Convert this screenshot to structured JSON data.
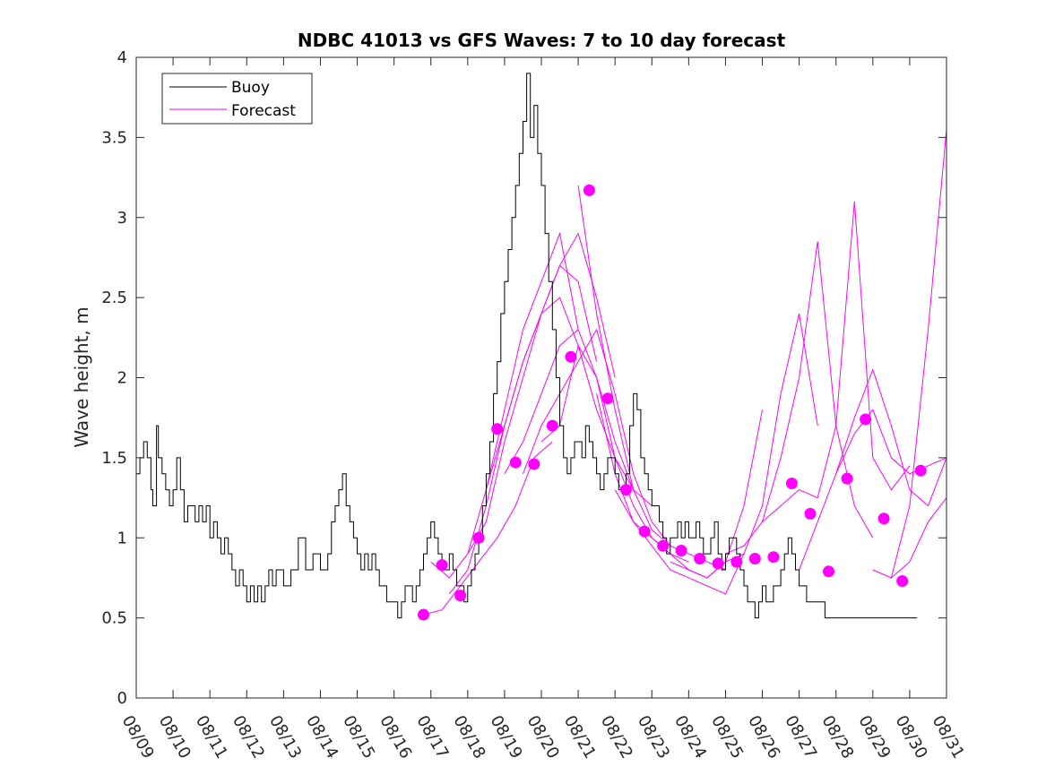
{
  "chart_data": {
    "type": "line",
    "title": "NDBC 41013 vs GFS Waves: 7 to 10 day forecast",
    "xlabel": "",
    "ylabel": "Wave height, m",
    "xlim": [
      0,
      22
    ],
    "ylim": [
      0,
      4
    ],
    "xtick_labels": [
      "08/09",
      "08/10",
      "08/11",
      "08/12",
      "08/13",
      "08/14",
      "08/15",
      "08/16",
      "08/17",
      "08/18",
      "08/19",
      "08/20",
      "08/21",
      "08/22",
      "08/23",
      "08/24",
      "08/25",
      "08/26",
      "08/27",
      "08/28",
      "08/29",
      "08/30",
      "08/31"
    ],
    "yticks": [
      0,
      0.5,
      1,
      1.5,
      2,
      2.5,
      3,
      3.5,
      4
    ],
    "ytick_labels": [
      "0",
      "0.5",
      "1",
      "1.5",
      "2",
      "2.5",
      "3",
      "3.5",
      "4"
    ],
    "legend": {
      "position": "top-left",
      "entries": [
        "Buoy",
        "Forecast"
      ]
    },
    "colors": {
      "buoy": "#000000",
      "forecast": "#ff00ff"
    },
    "series": [
      {
        "name": "Buoy",
        "x": [
          0,
          0.1,
          0.2,
          0.3,
          0.4,
          0.45,
          0.55,
          0.6,
          0.7,
          0.8,
          0.9,
          1.0,
          1.1,
          1.2,
          1.3,
          1.4,
          1.5,
          1.6,
          1.7,
          1.8,
          1.9,
          2.0,
          2.1,
          2.2,
          2.3,
          2.4,
          2.5,
          2.6,
          2.7,
          2.8,
          2.9,
          3.0,
          3.1,
          3.2,
          3.3,
          3.4,
          3.5,
          3.6,
          3.7,
          3.8,
          3.9,
          4.0,
          4.2,
          4.4,
          4.6,
          4.8,
          5.0,
          5.2,
          5.3,
          5.4,
          5.5,
          5.6,
          5.7,
          5.8,
          5.9,
          6.0,
          6.1,
          6.2,
          6.3,
          6.4,
          6.5,
          6.6,
          6.7,
          6.8,
          6.9,
          7.0,
          7.1,
          7.2,
          7.3,
          7.4,
          7.5,
          7.6,
          7.7,
          7.8,
          7.9,
          8.0,
          8.1,
          8.2,
          8.3,
          8.4,
          8.5,
          8.6,
          8.7,
          8.8,
          8.9,
          9.0,
          9.1,
          9.2,
          9.3,
          9.4,
          9.5,
          9.6,
          9.7,
          9.8,
          9.9,
          10.0,
          10.1,
          10.2,
          10.3,
          10.4,
          10.5,
          10.6,
          10.7,
          10.8,
          10.9,
          11.0,
          11.1,
          11.2,
          11.3,
          11.4,
          11.5,
          11.6,
          11.7,
          11.8,
          11.9,
          12.0,
          12.1,
          12.2,
          12.3,
          12.4,
          12.5,
          12.6,
          12.7,
          12.8,
          12.9,
          13.0,
          13.1,
          13.2,
          13.3,
          13.4,
          13.5,
          13.6,
          13.7,
          13.8,
          13.9,
          14.0,
          14.1,
          14.2,
          14.3,
          14.4,
          14.5,
          14.6,
          14.7,
          14.8,
          14.9,
          15.0,
          15.1,
          15.2,
          15.3,
          15.4,
          15.5,
          15.6,
          15.7,
          15.8,
          15.9,
          16.0,
          16.1,
          16.2,
          16.3,
          16.4,
          16.5,
          16.6,
          16.7,
          16.8,
          16.9,
          17.0,
          17.1,
          17.2,
          17.3,
          17.4,
          17.5,
          17.6,
          17.7,
          17.8,
          17.9,
          18.0,
          18.1,
          18.2,
          18.3,
          18.4,
          18.5,
          18.6,
          18.7,
          18.8,
          18.9,
          19.0,
          19.1,
          19.2,
          19.3,
          19.4,
          19.5,
          19.6,
          19.7,
          19.8,
          19.9,
          20.0,
          20.1,
          20.2,
          20.3,
          20.4,
          20.5,
          20.6,
          20.7,
          20.8,
          20.9,
          21.0,
          21.1,
          21.2
        ],
        "y": [
          1.4,
          1.5,
          1.6,
          1.5,
          1.3,
          1.2,
          1.7,
          1.5,
          1.4,
          1.3,
          1.2,
          1.3,
          1.5,
          1.3,
          1.1,
          1.2,
          1.2,
          1.1,
          1.2,
          1.1,
          1.2,
          1.0,
          1.1,
          1.0,
          0.9,
          1.0,
          0.9,
          0.8,
          0.7,
          0.8,
          0.7,
          0.6,
          0.7,
          0.6,
          0.7,
          0.6,
          0.7,
          0.8,
          0.7,
          0.8,
          0.8,
          0.7,
          0.8,
          1.0,
          0.8,
          0.9,
          0.8,
          0.9,
          1.1,
          1.2,
          1.3,
          1.4,
          1.2,
          1.1,
          1.0,
          0.9,
          0.8,
          0.9,
          0.8,
          0.9,
          0.8,
          0.7,
          0.7,
          0.6,
          0.6,
          0.6,
          0.5,
          0.6,
          0.7,
          0.7,
          0.6,
          0.7,
          0.8,
          0.9,
          1.0,
          1.1,
          1.0,
          0.9,
          0.8,
          0.8,
          0.9,
          0.8,
          0.7,
          0.7,
          0.6,
          0.7,
          0.8,
          0.9,
          1.0,
          1.2,
          1.4,
          1.6,
          1.9,
          2.1,
          2.4,
          2.6,
          2.8,
          3.0,
          3.2,
          3.4,
          3.6,
          3.9,
          3.5,
          3.7,
          3.4,
          3.2,
          2.9,
          2.6,
          2.3,
          2.0,
          1.7,
          1.5,
          1.4,
          1.5,
          1.6,
          1.6,
          1.5,
          1.7,
          1.6,
          1.5,
          1.4,
          1.3,
          1.4,
          1.5,
          1.5,
          1.4,
          1.3,
          1.3,
          1.4,
          1.7,
          1.9,
          1.8,
          1.5,
          1.4,
          1.3,
          1.2,
          1.2,
          1.1,
          1.0,
          0.9,
          1.0,
          1.0,
          1.1,
          1.0,
          1.1,
          1.0,
          1.0,
          1.1,
          1.0,
          0.9,
          0.9,
          1.0,
          1.1,
          0.9,
          0.8,
          0.9,
          1.0,
          1.0,
          0.9,
          0.8,
          0.7,
          0.6,
          0.6,
          0.5,
          0.6,
          0.7,
          0.6,
          0.6,
          0.7,
          0.7,
          0.8,
          0.9,
          1.0,
          0.9,
          0.8,
          0.7,
          0.7,
          0.6,
          0.6,
          0.6,
          0.6,
          0.6,
          0.5,
          0.5,
          0.5,
          0.5,
          0.5,
          0.5,
          0.5,
          0.5,
          0.5,
          0.5,
          0.5,
          0.5,
          0.5,
          0.5,
          0.5,
          0.5,
          0.5,
          0.5,
          0.5,
          0.5,
          0.5,
          0.5,
          0.5,
          0.5,
          0.5,
          0.5
        ]
      },
      {
        "name": "Forecast",
        "runs": [
          {
            "x": [
              7.8,
              8.3,
              8.8,
              9.3,
              9.8,
              10.3,
              10.8,
              11.3
            ],
            "y": [
              0.52,
              0.55,
              0.7,
              0.85,
              1.0,
              1.2,
              1.5,
              1.6
            ]
          },
          {
            "x": [
              8.0,
              8.5,
              9.0,
              9.5,
              10.0,
              10.5,
              11.0,
              11.5,
              12.0
            ],
            "y": [
              0.85,
              0.75,
              0.9,
              1.3,
              1.8,
              2.3,
              2.6,
              2.9,
              2.3
            ]
          },
          {
            "x": [
              8.5,
              9.0,
              9.5,
              10.0,
              10.5,
              11.0,
              11.5,
              12.0,
              12.5
            ],
            "y": [
              0.65,
              0.8,
              1.2,
              1.7,
              2.1,
              2.4,
              2.7,
              2.6,
              2.1
            ]
          },
          {
            "x": [
              9.0,
              9.5,
              10.0,
              10.5,
              11.0,
              11.5,
              12.0,
              12.5,
              13.0
            ],
            "y": [
              0.9,
              1.1,
              1.6,
              2.0,
              2.4,
              2.7,
              2.9,
              2.5,
              2.0
            ]
          },
          {
            "x": [
              9.5,
              10.0,
              10.5,
              11.0,
              11.5,
              12.0,
              12.5,
              13.0,
              13.5
            ],
            "y": [
              1.3,
              1.7,
              2.1,
              2.4,
              2.5,
              2.2,
              1.8,
              1.5,
              1.3
            ]
          },
          {
            "x": [
              10.0,
              10.5,
              11.0,
              11.5,
              12.0,
              12.5,
              13.0,
              13.5,
              14.0
            ],
            "y": [
              1.4,
              1.6,
              1.9,
              2.2,
              2.3,
              2.0,
              1.6,
              1.3,
              1.2
            ]
          },
          {
            "x": [
              10.5,
              11.0,
              11.5,
              12.0,
              12.5,
              13.0,
              13.5,
              14.0,
              14.5
            ],
            "y": [
              1.4,
              1.7,
              1.9,
              2.1,
              2.3,
              1.9,
              1.4,
              1.1,
              0.95
            ]
          },
          {
            "x": [
              11.0,
              11.5,
              12.0,
              12.5,
              13.0,
              13.5,
              14.0,
              14.5,
              15.0
            ],
            "y": [
              1.6,
              1.7,
              2.2,
              2.0,
              1.5,
              1.2,
              1.0,
              0.9,
              0.85
            ]
          },
          {
            "x": [
              12.0,
              12.5,
              13.0,
              13.5,
              14.0,
              14.5,
              15.0,
              15.5,
              16.0
            ],
            "y": [
              3.2,
              2.4,
              1.8,
              1.3,
              1.05,
              0.95,
              0.9,
              0.85,
              0.8
            ]
          },
          {
            "x": [
              12.5,
              13.0,
              13.5,
              14.0,
              14.5,
              15.0,
              15.5,
              16.0,
              16.5
            ],
            "y": [
              1.9,
              1.4,
              1.1,
              0.95,
              0.8,
              0.75,
              0.7,
              0.65,
              0.9
            ]
          },
          {
            "x": [
              13.0,
              13.5,
              14.0,
              14.5,
              15.0,
              15.5,
              16.0,
              16.5,
              17.0
            ],
            "y": [
              1.3,
              1.1,
              1.0,
              0.9,
              0.8,
              0.75,
              0.85,
              1.2,
              1.8
            ]
          },
          {
            "x": [
              14.5,
              15.0,
              15.5,
              16.0,
              16.5,
              17.0,
              17.5,
              18.0,
              18.5
            ],
            "y": [
              0.85,
              0.8,
              0.75,
              0.85,
              0.9,
              1.2,
              1.9,
              2.4,
              1.7
            ]
          },
          {
            "x": [
              16.0,
              16.5,
              17.0,
              17.5,
              18.0,
              18.5,
              19.0,
              19.5,
              20.0
            ],
            "y": [
              0.9,
              0.95,
              1.1,
              1.5,
              2.0,
              2.85,
              1.7,
              1.2,
              1.0
            ]
          },
          {
            "x": [
              17.0,
              17.5,
              18.0,
              18.5,
              19.0,
              19.5,
              20.0,
              20.5,
              21.0
            ],
            "y": [
              1.1,
              1.2,
              1.3,
              1.25,
              1.7,
              3.1,
              1.5,
              1.3,
              1.45
            ]
          },
          {
            "x": [
              18.0,
              18.5,
              19.0,
              19.5,
              20.0,
              20.5,
              21.0,
              21.5,
              22.0
            ],
            "y": [
              0.8,
              1.1,
              1.4,
              1.75,
              2.05,
              1.7,
              1.3,
              1.2,
              1.5
            ]
          },
          {
            "x": [
              19.0,
              19.5,
              20.0,
              20.5,
              21.0,
              21.5,
              22.0
            ],
            "y": [
              1.4,
              1.65,
              1.8,
              1.5,
              1.4,
              1.45,
              1.5
            ]
          },
          {
            "x": [
              20.0,
              20.5,
              21.0,
              21.5,
              22.0
            ],
            "y": [
              0.8,
              0.75,
              1.2,
              2.3,
              3.55
            ]
          },
          {
            "x": [
              20.5,
              21.0,
              21.5,
              22.0
            ],
            "y": [
              0.75,
              0.85,
              1.1,
              1.25
            ]
          }
        ],
        "markers": {
          "x": [
            7.8,
            8.3,
            8.8,
            9.3,
            9.8,
            10.3,
            10.8,
            11.3,
            11.8,
            12.3,
            12.8,
            13.3,
            13.8,
            14.3,
            14.8,
            15.3,
            15.8,
            16.3,
            16.8,
            17.3,
            17.8,
            18.3,
            18.8,
            19.3,
            19.8,
            20.3,
            20.8,
            21.3
          ],
          "y": [
            0.52,
            0.83,
            0.64,
            1.0,
            1.68,
            1.47,
            1.46,
            1.7,
            2.13,
            3.17,
            1.87,
            1.3,
            1.04,
            0.95,
            0.92,
            0.87,
            0.84,
            0.85,
            0.87,
            0.88,
            1.34,
            1.15,
            0.79,
            1.37,
            1.74,
            1.12,
            0.73,
            1.42
          ]
        }
      }
    ]
  }
}
